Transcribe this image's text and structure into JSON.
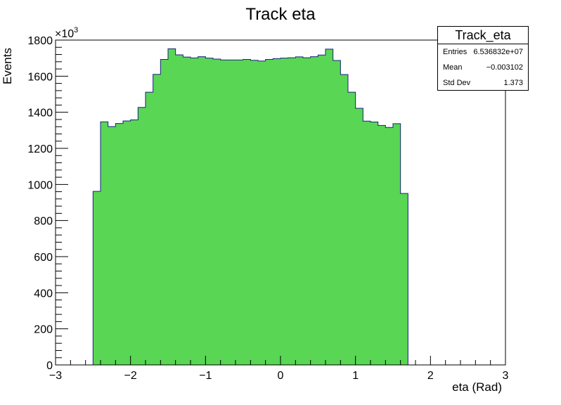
{
  "chart_data": {
    "type": "bar",
    "title": "Track eta",
    "xlabel": "eta (Rad)",
    "ylabel": "Events",
    "y_multiplier": "×10",
    "y_multiplier_exp": "3",
    "xlim": [
      -3,
      3
    ],
    "ylim": [
      0,
      1800
    ],
    "x_ticks": [
      -3,
      -2,
      -1,
      0,
      1,
      2,
      3
    ],
    "x_tick_labels": [
      "−3",
      "−2",
      "−1",
      "0",
      "1",
      "2",
      "3"
    ],
    "y_ticks": [
      0,
      200,
      400,
      600,
      800,
      1000,
      1200,
      1400,
      1600,
      1800
    ],
    "y_tick_labels": [
      "0",
      "200",
      "400",
      "600",
      "800",
      "1000",
      "1200",
      "1400",
      "1600",
      "1800"
    ],
    "bin_edges_start": -2.5,
    "bin_width": 0.1,
    "values": [
      962,
      1347,
      1321,
      1338,
      1352,
      1358,
      1427,
      1511,
      1610,
      1693,
      1752,
      1718,
      1706,
      1701,
      1708,
      1700,
      1695,
      1690,
      1690,
      1690,
      1693,
      1688,
      1684,
      1693,
      1697,
      1700,
      1702,
      1707,
      1702,
      1708,
      1717,
      1750,
      1687,
      1609,
      1511,
      1422,
      1351,
      1346,
      1327,
      1316,
      1337,
      950
    ],
    "fill_color": "#58d654",
    "line_color": "#1a237e",
    "grid": false,
    "legend": "top-right"
  },
  "stats": {
    "title": "Track_eta",
    "rows": [
      {
        "label": "Entries",
        "value": "6.536832e+07"
      },
      {
        "label": "Mean",
        "value": "−0.003102"
      },
      {
        "label": "Std Dev",
        "value": "1.373"
      }
    ]
  }
}
